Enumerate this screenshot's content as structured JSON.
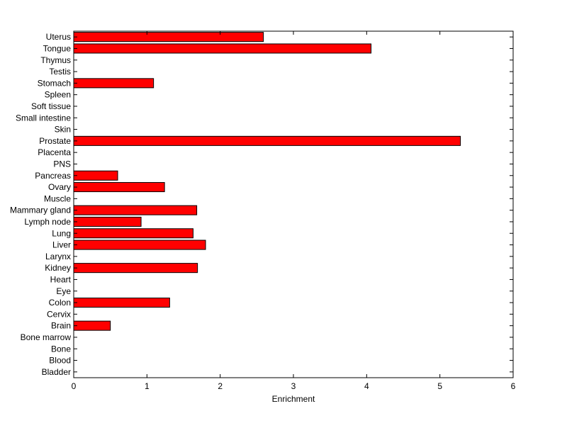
{
  "chart_data": {
    "type": "bar",
    "orientation": "horizontal",
    "title": "",
    "xlabel": "Enrichment",
    "ylabel": "",
    "xlim": [
      0,
      6
    ],
    "xticks": [
      "0",
      "1",
      "2",
      "3",
      "4",
      "5",
      "6"
    ],
    "grid": false,
    "bar_color": "#ff0000",
    "bar_edge_color": "#000000",
    "categories": [
      "Uterus",
      "Tongue",
      "Thymus",
      "Testis",
      "Stomach",
      "Spleen",
      "Soft tissue",
      "Small intestine",
      "Skin",
      "Prostate",
      "Placenta",
      "PNS",
      "Pancreas",
      "Ovary",
      "Muscle",
      "Mammary gland",
      "Lymph node",
      "Lung",
      "Liver",
      "Larynx",
      "Kidney",
      "Heart",
      "Eye",
      "Colon",
      "Cervix",
      "Brain",
      "Bone marrow",
      "Bone",
      "Blood",
      "Bladder"
    ],
    "values": [
      2.59,
      4.06,
      0,
      0,
      1.09,
      0,
      0,
      0,
      0,
      5.28,
      0,
      0,
      0.6,
      1.24,
      0,
      1.68,
      0.92,
      1.63,
      1.8,
      0,
      1.69,
      0,
      0,
      1.31,
      0,
      0.5,
      0,
      0,
      0,
      0
    ]
  }
}
